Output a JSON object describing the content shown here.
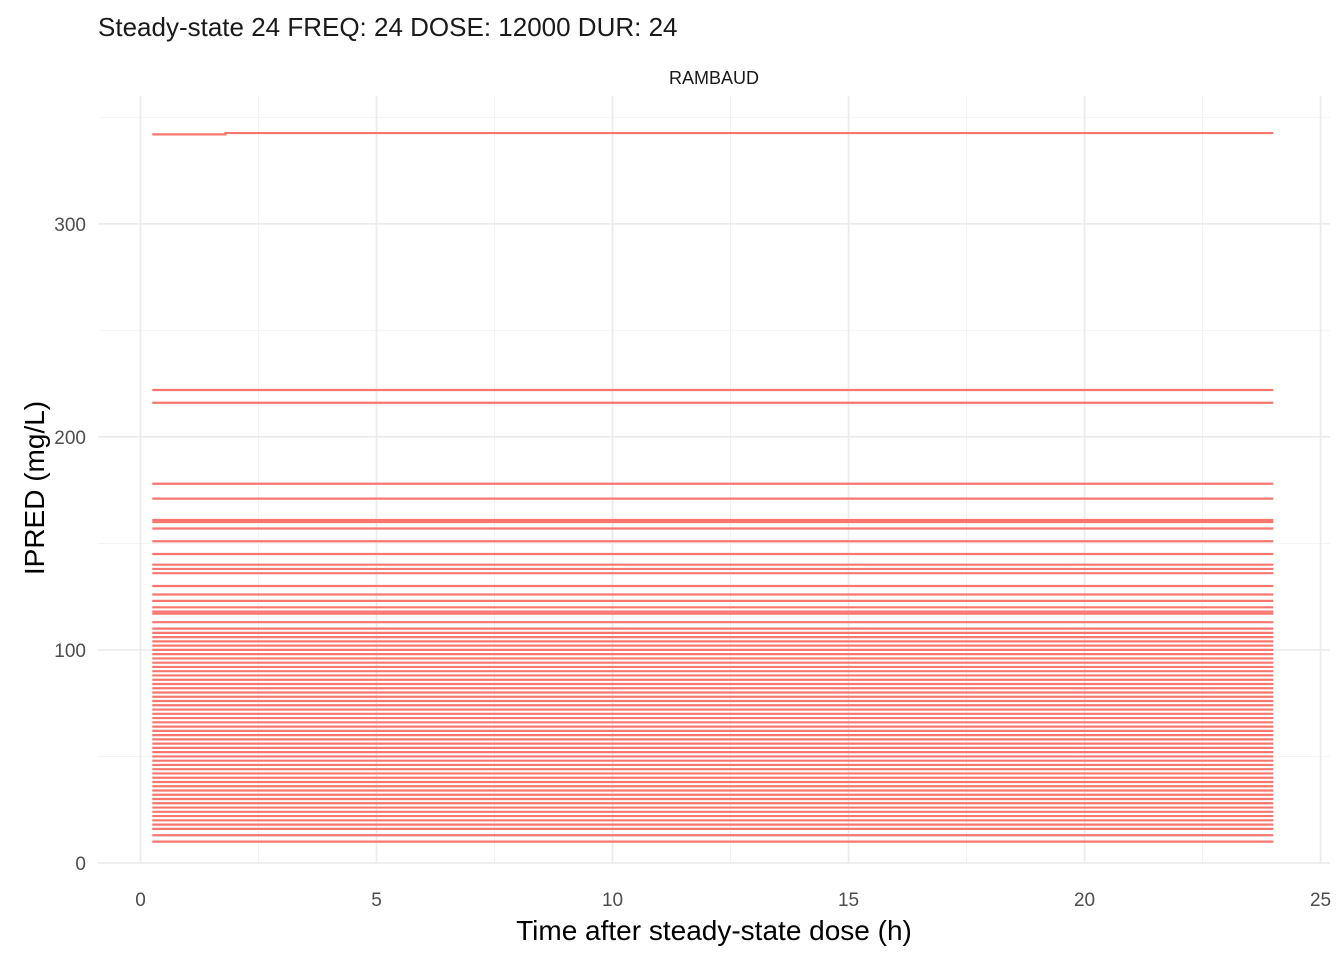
{
  "chart_data": {
    "type": "line",
    "title": "Steady-state 24 FREQ: 24 DOSE: 12000 DUR: 24",
    "panel": "RAMBAUD",
    "xlabel": "Time after steady-state dose (h)",
    "ylabel": "IPRED (mg/L)",
    "xlim": [
      -0.9,
      25.2
    ],
    "ylim": [
      -0.5,
      360
    ],
    "x_ticks": [
      0,
      5,
      10,
      15,
      20,
      25
    ],
    "y_ticks": [
      0,
      100,
      200,
      300
    ],
    "x_range_series": [
      0.25,
      24
    ],
    "grid": true,
    "line_color": "#F8766D",
    "series": [
      {
        "values": [
          342.0,
          342.6
        ],
        "x_break": 1.8
      },
      {
        "values": [
          222
        ]
      },
      {
        "values": [
          216
        ]
      },
      {
        "values": [
          178
        ]
      },
      {
        "values": [
          171
        ]
      },
      {
        "values": [
          161
        ]
      },
      {
        "values": [
          160
        ]
      },
      {
        "values": [
          157
        ]
      },
      {
        "values": [
          151
        ]
      },
      {
        "values": [
          145
        ]
      },
      {
        "values": [
          140
        ]
      },
      {
        "values": [
          138
        ]
      },
      {
        "values": [
          136
        ]
      },
      {
        "values": [
          130
        ]
      },
      {
        "values": [
          126
        ]
      },
      {
        "values": [
          123
        ]
      },
      {
        "values": [
          120
        ]
      },
      {
        "values": [
          118
        ]
      },
      {
        "values": [
          117
        ]
      },
      {
        "values": [
          113
        ]
      },
      {
        "values": [
          110
        ]
      },
      {
        "values": [
          108
        ]
      },
      {
        "values": [
          106
        ]
      },
      {
        "values": [
          104
        ]
      },
      {
        "values": [
          102
        ]
      },
      {
        "values": [
          100
        ]
      },
      {
        "values": [
          98
        ]
      },
      {
        "values": [
          96
        ]
      },
      {
        "values": [
          94
        ]
      },
      {
        "values": [
          92
        ]
      },
      {
        "values": [
          90
        ]
      },
      {
        "values": [
          88
        ]
      },
      {
        "values": [
          86
        ]
      },
      {
        "values": [
          84
        ]
      },
      {
        "values": [
          82
        ]
      },
      {
        "values": [
          80
        ]
      },
      {
        "values": [
          78
        ]
      },
      {
        "values": [
          76
        ]
      },
      {
        "values": [
          74
        ]
      },
      {
        "values": [
          72
        ]
      },
      {
        "values": [
          70
        ]
      },
      {
        "values": [
          68
        ]
      },
      {
        "values": [
          66
        ]
      },
      {
        "values": [
          64
        ]
      },
      {
        "values": [
          62
        ]
      },
      {
        "values": [
          60
        ]
      },
      {
        "values": [
          58
        ]
      },
      {
        "values": [
          56
        ]
      },
      {
        "values": [
          54
        ]
      },
      {
        "values": [
          52
        ]
      },
      {
        "values": [
          50
        ]
      },
      {
        "values": [
          48
        ]
      },
      {
        "values": [
          46
        ]
      },
      {
        "values": [
          44
        ]
      },
      {
        "values": [
          42
        ]
      },
      {
        "values": [
          40
        ]
      },
      {
        "values": [
          38
        ]
      },
      {
        "values": [
          36
        ]
      },
      {
        "values": [
          34
        ]
      },
      {
        "values": [
          32
        ]
      },
      {
        "values": [
          30
        ]
      },
      {
        "values": [
          28
        ]
      },
      {
        "values": [
          26
        ]
      },
      {
        "values": [
          24
        ]
      },
      {
        "values": [
          22
        ]
      },
      {
        "values": [
          20
        ]
      },
      {
        "values": [
          18
        ]
      },
      {
        "values": [
          16
        ]
      },
      {
        "values": [
          13
        ]
      },
      {
        "values": [
          10
        ]
      }
    ]
  }
}
